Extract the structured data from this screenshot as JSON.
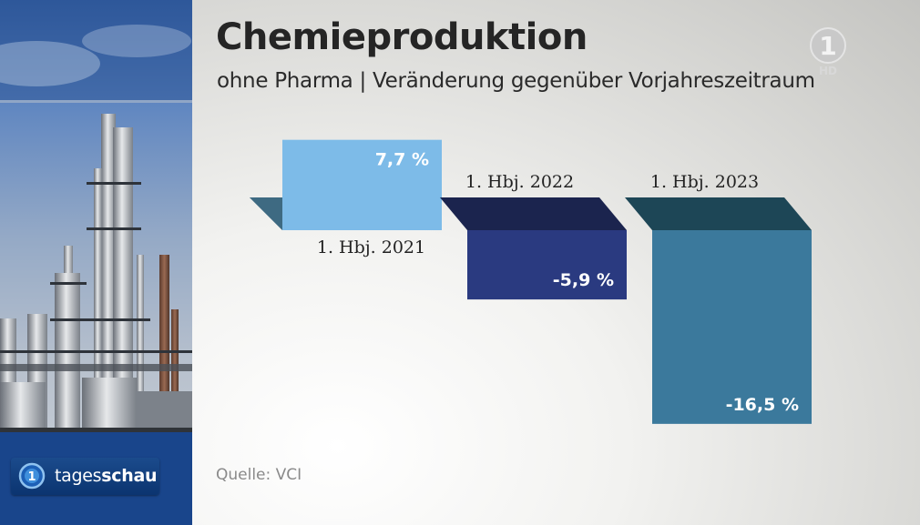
{
  "header": {
    "title": "Chemieproduktion",
    "subtitle": "ohne Pharma | Veränderung gegenüber Vorjahreszeitraum"
  },
  "source": "Quelle: VCI",
  "broadcaster": {
    "logo_label": "1",
    "hd_label": "HD"
  },
  "brand": {
    "name_prefix": "tages",
    "name_suffix": "schau"
  },
  "colors": {
    "bar_2021": "#7dbbe8",
    "bar_2022": "#2a3a80",
    "bar_2023": "#3b799c",
    "bar_2022_top": "#1b244e",
    "bar_2023_top": "#1d4656",
    "bar_2021_side": "#3e6a82"
  },
  "chart_data": {
    "type": "bar",
    "categories": [
      "1. Hbj. 2021",
      "1. Hbj. 2022",
      "1. Hbj. 2023"
    ],
    "values": [
      7.7,
      -5.9,
      -16.5
    ],
    "value_labels": [
      "7,7 %",
      "-5,9 %",
      "-16,5 %"
    ],
    "unit": "%",
    "title": "Chemieproduktion",
    "subtitle": "ohne Pharma | Veränderung gegenüber Vorjahreszeitraum",
    "ylim": [
      -16.5,
      7.7
    ],
    "grid": false
  }
}
